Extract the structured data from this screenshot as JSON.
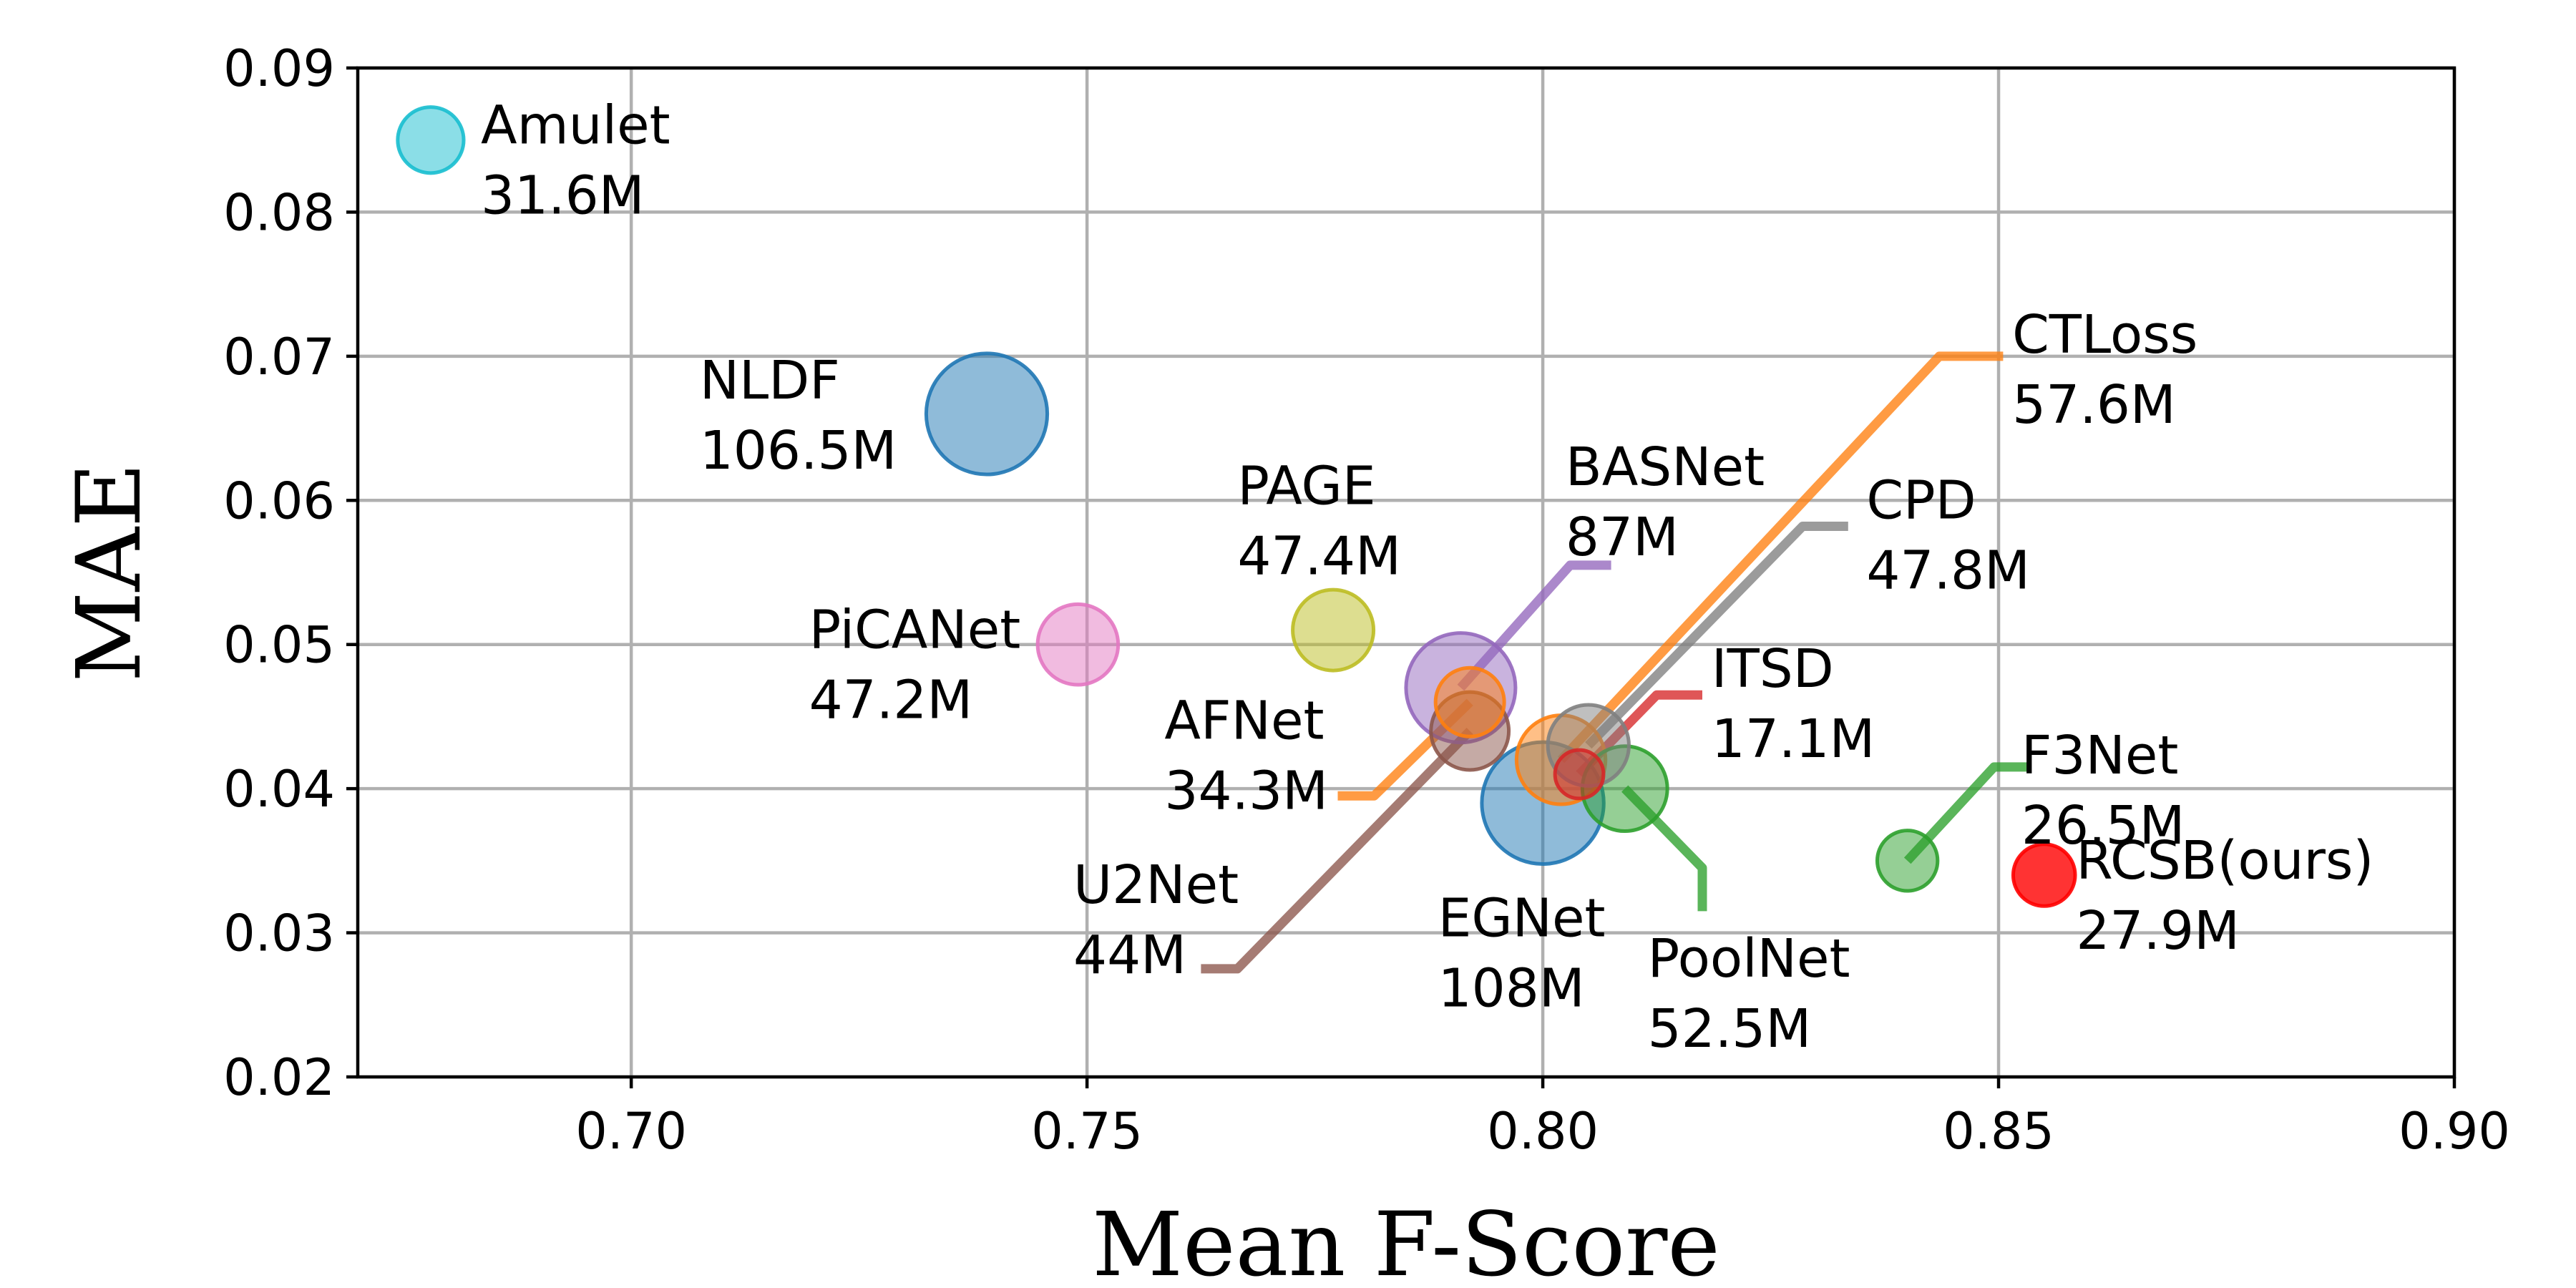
{
  "chart_data": {
    "type": "scatter",
    "title": "",
    "xlabel": "Mean F-Score",
    "ylabel": "MAE",
    "xlim": [
      0.67,
      0.9
    ],
    "ylim": [
      0.02,
      0.09
    ],
    "grid": true,
    "xticks": [
      0.7,
      0.75,
      0.8,
      0.85,
      0.9
    ],
    "xtick_labels": [
      "0.70",
      "0.75",
      "0.80",
      "0.85",
      "0.90"
    ],
    "yticks": [
      0.02,
      0.03,
      0.04,
      0.05,
      0.06,
      0.07,
      0.08,
      0.09
    ],
    "ytick_labels": [
      "0.02",
      "0.03",
      "0.04",
      "0.05",
      "0.06",
      "0.07",
      "0.08",
      "0.09"
    ],
    "points": [
      {
        "name": "Amulet",
        "params": "31.6M",
        "params_m": 31.6,
        "x": 0.678,
        "y": 0.085,
        "color": "#17becf",
        "label_x": 0.6835,
        "label_y": 0.085,
        "leader": null
      },
      {
        "name": "NLDF",
        "params": "106.5M",
        "params_m": 106.5,
        "x": 0.739,
        "y": 0.066,
        "color": "#1f77b4",
        "label_x": 0.7075,
        "label_y": 0.0673,
        "leader": null
      },
      {
        "name": "PiCANet",
        "params": "47.2M",
        "params_m": 47.2,
        "x": 0.749,
        "y": 0.05,
        "color": "#e377c2",
        "label_x": 0.7195,
        "label_y": 0.05,
        "leader": null
      },
      {
        "name": "PAGE",
        "params": "47.4M",
        "params_m": 47.4,
        "x": 0.777,
        "y": 0.051,
        "color": "#bcbd22",
        "label_x": 0.7665,
        "label_y": 0.06,
        "leader": null
      },
      {
        "name": "BASNet",
        "params": "87M",
        "params_m": 87.0,
        "x": 0.791,
        "y": 0.047,
        "color": "#9467bd",
        "label_x": 0.8025,
        "label_y": 0.0613,
        "leader": [
          [
            0.791,
            0.047
          ],
          [
            0.803,
            0.0555
          ],
          [
            0.8075,
            0.0555
          ]
        ]
      },
      {
        "name": "CTLoss",
        "params": "57.6M",
        "params_m": 57.6,
        "x": 0.802,
        "y": 0.042,
        "color": "#ff7f0e",
        "label_x": 0.8515,
        "label_y": 0.0705,
        "leader": [
          [
            0.802,
            0.042
          ],
          [
            0.8435,
            0.07
          ],
          [
            0.8505,
            0.07
          ]
        ]
      },
      {
        "name": "CPD",
        "params": "47.8M",
        "params_m": 47.8,
        "x": 0.805,
        "y": 0.043,
        "color": "#7f7f7f",
        "label_x": 0.8355,
        "label_y": 0.059,
        "leader": [
          [
            0.805,
            0.043
          ],
          [
            0.8285,
            0.0582
          ],
          [
            0.8335,
            0.0582
          ]
        ]
      },
      {
        "name": "ITSD",
        "params": "17.1M",
        "params_m": 17.1,
        "x": 0.804,
        "y": 0.041,
        "color": "#d62728",
        "label_x": 0.8185,
        "label_y": 0.0473,
        "leader": [
          [
            0.804,
            0.041
          ],
          [
            0.8125,
            0.0465
          ],
          [
            0.8175,
            0.0465
          ]
        ]
      },
      {
        "name": "AFNet",
        "params": "34.3M",
        "params_m": 34.3,
        "x": 0.792,
        "y": 0.046,
        "color": "#ff7f0e",
        "label_x": 0.7585,
        "label_y": 0.0437,
        "leader": [
          [
            0.792,
            0.046
          ],
          [
            0.7815,
            0.0395
          ],
          [
            0.7775,
            0.0395
          ]
        ]
      },
      {
        "name": "U2Net",
        "params": "44M",
        "params_m": 44.0,
        "x": 0.792,
        "y": 0.044,
        "color": "#8c564b",
        "label_x": 0.7485,
        "label_y": 0.0323,
        "leader": [
          [
            0.792,
            0.044
          ],
          [
            0.7665,
            0.0275
          ],
          [
            0.7625,
            0.0275
          ]
        ]
      },
      {
        "name": "EGNet",
        "params": "108M",
        "params_m": 108.0,
        "x": 0.8,
        "y": 0.039,
        "color": "#1f77b4",
        "label_x": 0.7885,
        "label_y": 0.03,
        "leader": null
      },
      {
        "name": "PoolNet",
        "params": "52.5M",
        "params_m": 52.5,
        "x": 0.809,
        "y": 0.04,
        "color": "#2ca02c",
        "label_x": 0.8115,
        "label_y": 0.0272,
        "leader": [
          [
            0.809,
            0.04
          ],
          [
            0.8175,
            0.0345
          ],
          [
            0.8175,
            0.0315
          ]
        ]
      },
      {
        "name": "F3Net",
        "params": "26.5M",
        "params_m": 26.5,
        "x": 0.84,
        "y": 0.035,
        "color": "#2ca02c",
        "label_x": 0.8525,
        "label_y": 0.0413,
        "leader": [
          [
            0.84,
            0.035
          ],
          [
            0.8495,
            0.0415
          ],
          [
            0.8535,
            0.0415
          ]
        ]
      },
      {
        "name": "RCSB(ours)",
        "params": "27.9M",
        "params_m": 27.9,
        "x": 0.855,
        "y": 0.034,
        "color": "#ff0000",
        "label_x": 0.8585,
        "label_y": 0.034,
        "leader": null,
        "highlight": true
      }
    ]
  }
}
